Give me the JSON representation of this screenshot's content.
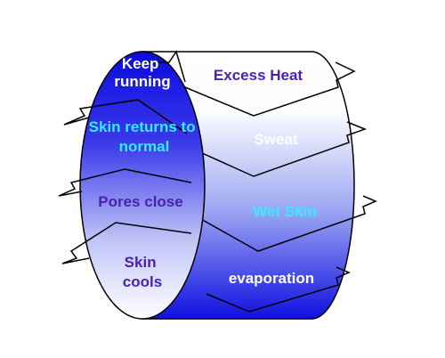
{
  "diagram": {
    "front_steps": [
      {
        "id": "keep_running",
        "lines": [
          "Keep",
          "running"
        ],
        "color": "#ffffff"
      },
      {
        "id": "skin_returns",
        "lines": [
          "Skin returns to",
          "normal"
        ],
        "color": "#33eeff"
      },
      {
        "id": "pores_close",
        "lines": [
          "Pores close"
        ],
        "color": "#4b1fb0"
      },
      {
        "id": "skin_cools",
        "lines": [
          "Skin",
          "cools"
        ],
        "color": "#4b1fb0"
      }
    ],
    "back_steps": [
      {
        "id": "excess_heat",
        "lines": [
          "Excess Heat"
        ],
        "color": "#4b1fb0"
      },
      {
        "id": "sweat",
        "lines": [
          "Sweat"
        ],
        "color": "#ffffff"
      },
      {
        "id": "wet_skin",
        "lines": [
          "Wet Skin"
        ],
        "color": "#33eeff"
      },
      {
        "id": "evaporation",
        "lines": [
          "evaporation"
        ],
        "color": "#ffffff"
      }
    ],
    "colors": {
      "deep_blue": "#1414e6",
      "white": "#ffffff",
      "outline": "#000000"
    }
  }
}
